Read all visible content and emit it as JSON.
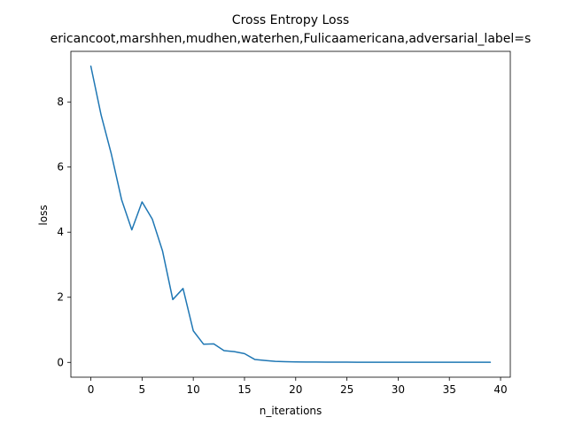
{
  "chart_data": {
    "type": "line",
    "title": "Cross Entropy Loss",
    "subtitle": "ericancoot,marshhen,mudhen,waterhen,Fulicaamericana,adversarial_label=s",
    "xlabel": "n_iterations",
    "ylabel": "loss",
    "xlim": [
      -1.95,
      40.95
    ],
    "ylim": [
      -0.455,
      9.555
    ],
    "xticks": [
      0,
      5,
      10,
      15,
      20,
      25,
      30,
      35,
      40
    ],
    "yticks": [
      0,
      2,
      4,
      6,
      8
    ],
    "grid": false,
    "legend": "none",
    "line_color": "#1f77b4",
    "series": [
      {
        "x": [
          0,
          1,
          2,
          3,
          4,
          5,
          6,
          7,
          8,
          9,
          10,
          11,
          12,
          13,
          14,
          15,
          16,
          17,
          18,
          19,
          20,
          21,
          22,
          23,
          24,
          25,
          26,
          27,
          28,
          29,
          30,
          31,
          32,
          33,
          34,
          35,
          36,
          37,
          38,
          39
        ],
        "values": [
          9.1,
          7.6,
          6.4,
          5.0,
          4.07,
          4.93,
          4.4,
          3.42,
          1.93,
          2.27,
          0.97,
          0.56,
          0.57,
          0.36,
          0.33,
          0.27,
          0.09,
          0.06,
          0.03,
          0.02,
          0.015,
          0.012,
          0.01,
          0.008,
          0.007,
          0.006,
          0.005,
          0.005,
          0.004,
          0.004,
          0.004,
          0.003,
          0.003,
          0.003,
          0.003,
          0.003,
          0.003,
          0.003,
          0.003,
          0.003
        ]
      }
    ]
  }
}
